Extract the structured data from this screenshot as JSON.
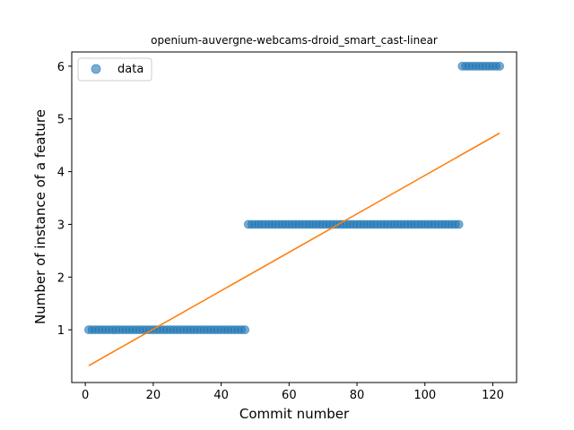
{
  "chart_data": {
    "type": "scatter",
    "title": "openium-auvergne-webcams-droid_smart_cast-linear",
    "xlabel": "Commit number",
    "ylabel": "Number of instance of a feature",
    "xlim": [
      -4,
      127
    ],
    "ylim": [
      -0.0,
      6.27
    ],
    "xticks": [
      0,
      20,
      40,
      60,
      80,
      100,
      120
    ],
    "yticks": [
      1,
      2,
      3,
      4,
      5,
      6
    ],
    "grid": false,
    "legend": {
      "position": "top-left",
      "entries": [
        "data"
      ]
    },
    "colors": {
      "data": "#1f77b4",
      "fit": "#ff7f0e"
    },
    "series": [
      {
        "name": "data",
        "kind": "scatter",
        "segments": [
          {
            "x_start": 1,
            "x_end": 47,
            "y": 1
          },
          {
            "x_start": 48,
            "x_end": 110,
            "y": 3
          },
          {
            "x_start": 111,
            "x_end": 122,
            "y": 6
          }
        ]
      },
      {
        "kind": "line",
        "x": [
          1,
          122
        ],
        "y": [
          0.32,
          4.73
        ]
      }
    ]
  }
}
